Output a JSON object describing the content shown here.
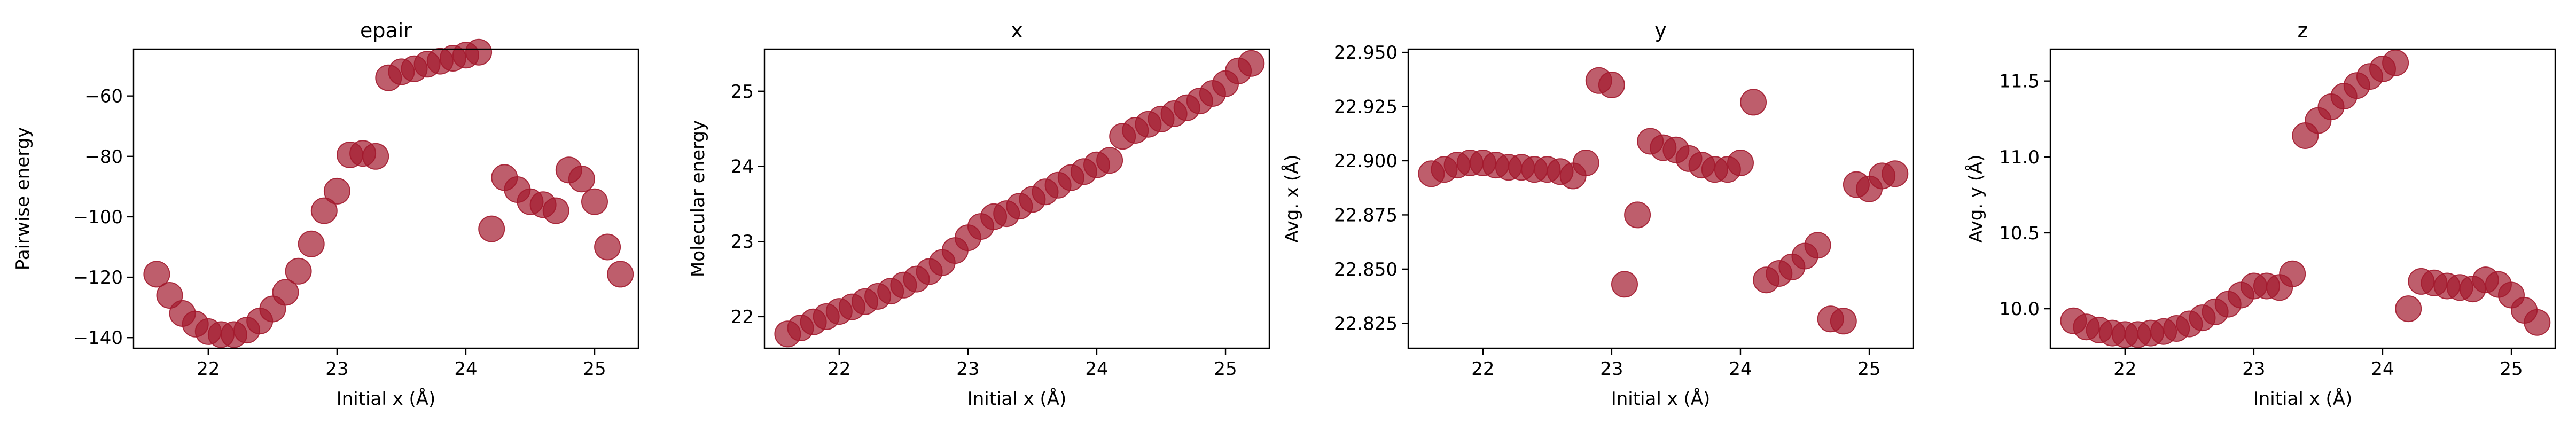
{
  "figure": {
    "background": "#ffffff"
  },
  "chart_data": [
    {
      "type": "scatter",
      "title": "epair",
      "xlabel": "Initial x (Å)",
      "ylabel": "Pairwise energy",
      "xlim": [
        21.42,
        25.34
      ],
      "ylim": [
        -143.5,
        -44.5
      ],
      "xticks": [
        22,
        23,
        24,
        25
      ],
      "yticks": [
        -140,
        -120,
        -100,
        -80,
        -60
      ],
      "color": "#a3192d",
      "x": [
        21.6,
        21.7,
        21.8,
        21.9,
        22.0,
        22.1,
        22.2,
        22.3,
        22.4,
        22.5,
        22.6,
        22.7,
        22.8,
        22.9,
        23.0,
        23.1,
        23.2,
        23.3,
        23.4,
        23.5,
        23.6,
        23.7,
        23.8,
        23.9,
        24.0,
        24.1,
        24.2,
        24.3,
        24.4,
        24.5,
        24.6,
        24.7,
        24.8,
        24.9,
        25.0,
        25.1,
        25.2
      ],
      "y": [
        -119,
        -126,
        -132,
        -135.5,
        -138,
        -139,
        -139,
        -137.5,
        -134.5,
        -130.5,
        -125,
        -118,
        -109,
        -98,
        -91.5,
        -79.5,
        -79,
        -80,
        -54,
        -52,
        -51,
        -49.5,
        -48.5,
        -47.5,
        -46.5,
        -45.5,
        -104,
        -87,
        -91,
        -95,
        -96,
        -98,
        -84.5,
        -87.5,
        -95,
        -110,
        -119
      ]
    },
    {
      "type": "scatter",
      "title": "x",
      "xlabel": "Initial x (Å)",
      "ylabel": "Molecular energy",
      "xlim": [
        21.42,
        25.34
      ],
      "ylim": [
        21.58,
        25.56
      ],
      "xticks": [
        22,
        23,
        24,
        25
      ],
      "yticks": [
        22,
        23,
        24,
        25
      ],
      "color": "#a3192d",
      "x": [
        21.6,
        21.7,
        21.8,
        21.9,
        22.0,
        22.1,
        22.2,
        22.3,
        22.4,
        22.5,
        22.6,
        22.7,
        22.8,
        22.9,
        23.0,
        23.1,
        23.2,
        23.3,
        23.4,
        23.5,
        23.6,
        23.7,
        23.8,
        23.9,
        24.0,
        24.1,
        24.2,
        24.3,
        24.4,
        24.5,
        24.6,
        24.7,
        24.8,
        24.9,
        25.0,
        25.1,
        25.2
      ],
      "y": [
        21.77,
        21.85,
        21.93,
        22.0,
        22.07,
        22.13,
        22.2,
        22.27,
        22.34,
        22.42,
        22.5,
        22.6,
        22.72,
        22.88,
        23.05,
        23.2,
        23.33,
        23.37,
        23.47,
        23.56,
        23.66,
        23.75,
        23.85,
        23.93,
        24.02,
        24.08,
        24.4,
        24.48,
        24.56,
        24.63,
        24.7,
        24.78,
        24.87,
        24.97,
        25.1,
        25.27,
        25.37
      ]
    },
    {
      "type": "scatter",
      "title": "y",
      "xlabel": "Initial x (Å)",
      "ylabel": "Avg. x (Å)",
      "xlim": [
        21.42,
        25.34
      ],
      "ylim": [
        22.8135,
        22.9515
      ],
      "xticks": [
        22,
        23,
        24,
        25
      ],
      "yticks": [
        22.825,
        22.85,
        22.875,
        22.9,
        22.925,
        22.95
      ],
      "color": "#a3192d",
      "x": [
        21.6,
        21.7,
        21.8,
        21.9,
        22.0,
        22.1,
        22.2,
        22.3,
        22.4,
        22.5,
        22.6,
        22.7,
        22.8,
        22.9,
        23.0,
        23.1,
        23.2,
        23.3,
        23.4,
        23.5,
        23.6,
        23.7,
        23.8,
        23.9,
        24.0,
        24.1,
        24.2,
        24.3,
        24.4,
        24.5,
        24.6,
        24.7,
        24.8,
        24.9,
        25.0,
        25.1,
        25.2
      ],
      "y": [
        22.894,
        22.896,
        22.898,
        22.899,
        22.899,
        22.898,
        22.897,
        22.897,
        22.896,
        22.896,
        22.895,
        22.893,
        22.899,
        22.937,
        22.935,
        22.843,
        22.875,
        22.909,
        22.906,
        22.905,
        22.901,
        22.898,
        22.896,
        22.896,
        22.899,
        22.927,
        22.845,
        22.848,
        22.851,
        22.856,
        22.861,
        22.827,
        22.826,
        22.889,
        22.887,
        22.893,
        22.894
      ]
    },
    {
      "type": "scatter",
      "title": "z",
      "xlabel": "Initial x (Å)",
      "ylabel": "Avg. y (Å)",
      "xlim": [
        21.42,
        25.34
      ],
      "ylim": [
        9.74,
        11.71
      ],
      "xticks": [
        22,
        23,
        24,
        25
      ],
      "yticks": [
        10.0,
        10.5,
        11.0,
        11.5
      ],
      "color": "#a3192d",
      "x": [
        21.6,
        21.7,
        21.8,
        21.9,
        22.0,
        22.1,
        22.2,
        22.3,
        22.4,
        22.5,
        22.6,
        22.7,
        22.8,
        22.9,
        23.0,
        23.1,
        23.2,
        23.3,
        23.4,
        23.5,
        23.6,
        23.7,
        23.8,
        23.9,
        24.0,
        24.1,
        24.2,
        24.3,
        24.4,
        24.5,
        24.6,
        24.7,
        24.8,
        24.9,
        25.0,
        25.1,
        25.2
      ],
      "y": [
        9.92,
        9.88,
        9.86,
        9.84,
        9.83,
        9.83,
        9.84,
        9.85,
        9.87,
        9.9,
        9.94,
        9.98,
        10.03,
        10.09,
        10.15,
        10.15,
        10.14,
        10.23,
        11.14,
        11.24,
        11.33,
        11.4,
        11.47,
        11.53,
        11.58,
        11.62,
        10.0,
        10.18,
        10.17,
        10.15,
        10.14,
        10.13,
        10.19,
        10.16,
        10.09,
        9.99,
        9.91
      ]
    }
  ]
}
